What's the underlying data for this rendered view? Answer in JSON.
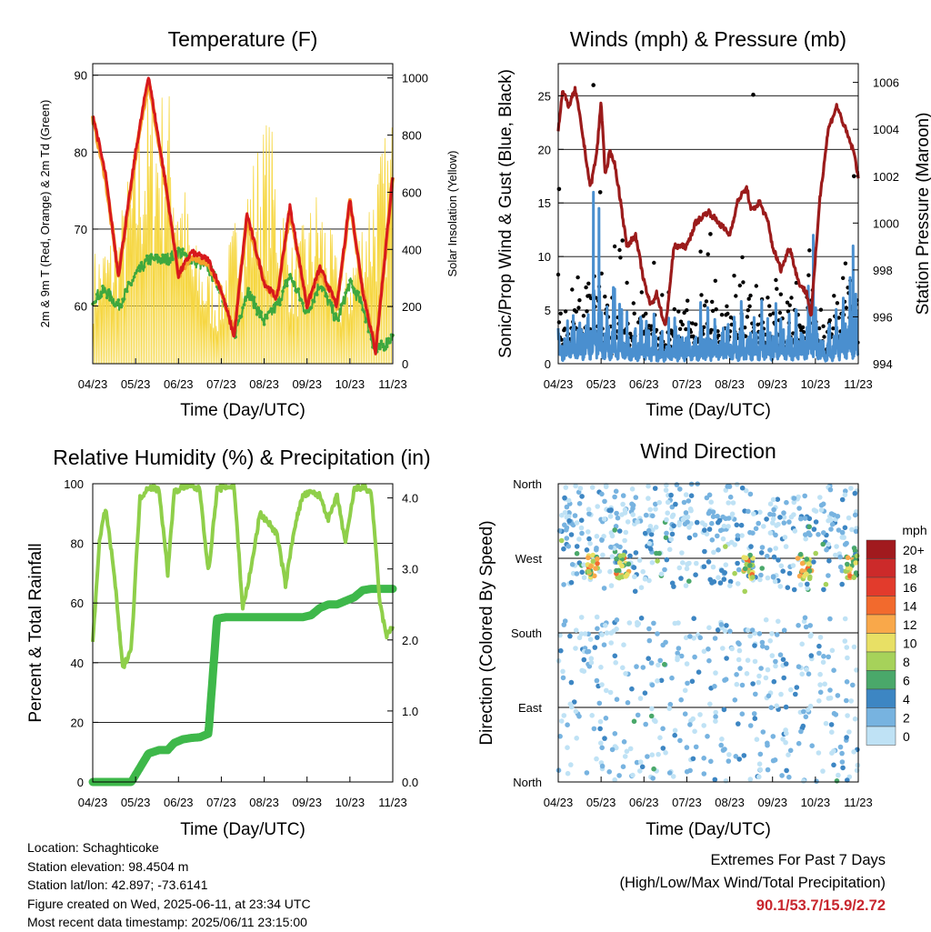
{
  "dates": [
    "04/23",
    "05/23",
    "06/23",
    "07/23",
    "08/23",
    "09/23",
    "10/23",
    "11/23"
  ],
  "colors": {
    "t2m": "#d7191c",
    "t9m": "#f4a12a",
    "td2m": "#3ea83e",
    "solar": "#f6d743",
    "wind": "#4a8fcf",
    "gust": "#000000",
    "pressure": "#9b1b1b",
    "rh": "#8fcf4a",
    "precip": "#3eb84a"
  },
  "panels": {
    "temp": {
      "title": "Temperature (F)",
      "xlabel": "Time (Day/UTC)",
      "ylabel": "2m & 9m T (Red, Orange) & 2m Td (Green)",
      "y2label": "Solar Insolation (Yellow)"
    },
    "wind": {
      "title": "Winds (mph) & Pressure (mb)",
      "xlabel": "Time (Day/UTC)",
      "ylabel": "Sonic/Prop Wind & Gust (Blue, Black)",
      "y2label": "Station Pressure (Maroon)"
    },
    "rh": {
      "title": "Relative Humidity (%) & Precipitation (in)",
      "xlabel": "Time (Day/UTC)",
      "ylabel": "Percent & Total Rainfall"
    },
    "dir": {
      "title": "Wind Direction",
      "xlabel": "Time (Day/UTC)",
      "ylabel": "Direction (Colored By Speed)"
    }
  },
  "legend": {
    "unit": "mph",
    "labels": [
      "20+",
      "18",
      "16",
      "14",
      "12",
      "10",
      "8",
      "6",
      "4",
      "2",
      "0"
    ],
    "colors": [
      "#a11a1e",
      "#cc2a2a",
      "#e23b2c",
      "#f26a2d",
      "#f9a84a",
      "#e8e065",
      "#a6d25a",
      "#4aa86a",
      "#3d86c3",
      "#77b3e0",
      "#bfe2f5"
    ]
  },
  "info": {
    "location": "Location: Schaghticoke",
    "elevation": "Station elevation: 98.4504 m",
    "latlon": "Station lat/lon: 42.897; -73.6141",
    "created": "Figure created on Wed, 2025-06-11, at 23:34 UTC",
    "recent": "Most recent data timestamp: 2025/06/11 23:15:00"
  },
  "extremes": {
    "title": "Extremes For Past 7 Days",
    "subtitle": "(High/Low/Max Wind/Total Precipitation)",
    "values": "90.1/53.7/15.9/2.72"
  },
  "chart_data": [
    {
      "type": "line",
      "title": "Temperature (F)",
      "xlabel": "Time (Day/UTC)",
      "ylabel": "2m & 9m T (Red, Orange) & 2m Td (Green)",
      "y2label": "Solar Insolation (Yellow)",
      "ylim": [
        52.5,
        91.5
      ],
      "y2lim": [
        0,
        1050
      ],
      "yticks": [
        60,
        70,
        80,
        90
      ],
      "y2ticks": [
        0,
        200,
        400,
        600,
        800,
        1000
      ],
      "x": [
        0,
        0.3,
        0.6,
        1.0,
        1.3,
        1.7,
        2.0,
        2.3,
        2.7,
        3.0,
        3.3,
        3.6,
        4.0,
        4.3,
        4.6,
        5.0,
        5.3,
        5.7,
        6.0,
        6.3,
        6.6,
        7.0
      ],
      "series": [
        {
          "name": "2m T",
          "values": [
            85,
            77,
            64,
            80,
            90,
            76,
            64,
            67,
            66,
            62,
            56,
            72,
            63,
            61,
            73,
            60,
            65,
            60,
            74,
            62,
            54,
            77
          ]
        },
        {
          "name": "9m T",
          "values": [
            84.5,
            76.5,
            64,
            79.5,
            89.5,
            75.5,
            64,
            66.5,
            65.5,
            62,
            56.5,
            71.5,
            63,
            61,
            72.5,
            60,
            64.5,
            60,
            73.5,
            62,
            54.5,
            76.5
          ]
        },
        {
          "name": "2m Td",
          "values": [
            61,
            62,
            60,
            64,
            66,
            66,
            67,
            66,
            65,
            62,
            56,
            62,
            58,
            60,
            64,
            59,
            63,
            58,
            63,
            60,
            54,
            56
          ]
        },
        {
          "name": "Solar",
          "peaks": [
            400,
            500,
            960,
            1000,
            450,
            280,
            650,
            900,
            400,
            650,
            290,
            640,
            900
          ]
        }
      ]
    },
    {
      "type": "scatter",
      "title": "Winds (mph) & Pressure (mb)",
      "xlabel": "Time (Day/UTC)",
      "ylabel": "Sonic/Prop Wind & Gust (Blue, Black)",
      "y2label": "Station Pressure (Maroon)",
      "ylim": [
        0,
        28
      ],
      "y2lim": [
        994,
        1006.8
      ],
      "yticks": [
        0,
        5,
        10,
        15,
        20,
        25
      ],
      "y2ticks": [
        994,
        996,
        998,
        1000,
        1002,
        1004,
        1006
      ],
      "x": [
        0,
        0.1,
        0.25,
        0.4,
        0.55,
        0.75,
        0.9,
        1.0,
        1.1,
        1.2,
        1.3,
        1.45,
        1.6,
        1.8,
        2.0,
        2.15,
        2.3,
        2.5,
        2.7,
        3.0,
        3.2,
        3.5,
        3.7,
        4.0,
        4.2,
        4.4,
        4.5,
        4.7,
        4.9,
        5.0,
        5.2,
        5.4,
        5.6,
        5.8,
        5.9,
        6.1,
        6.3,
        6.5,
        6.7,
        6.9,
        7.0
      ],
      "series": [
        {
          "name": "Pressure",
          "values": [
            1004,
            1005.6,
            1005,
            1005.7,
            1004,
            1001.5,
            1003,
            1005.2,
            1002,
            1003,
            1002.7,
            1001,
            999,
            999.5,
            997.5,
            996.5,
            997,
            995.5,
            999,
            999,
            1000,
            1000.5,
            1000.1,
            999.5,
            1001,
            1001.5,
            1000.5,
            1000.9,
            1000,
            999,
            998,
            999,
            997.5,
            997,
            996,
            1001,
            1004,
            1005,
            1004,
            1003,
            1002
          ]
        },
        {
          "name": "Wind",
          "typical": 3,
          "max": 16
        },
        {
          "name": "Gust",
          "typical": 5.5,
          "max": 26
        }
      ]
    },
    {
      "type": "line",
      "title": "Relative Humidity (%) & Precipitation (in)",
      "xlabel": "Time (Day/UTC)",
      "ylabel": "Percent & Total Rainfall",
      "ylim": [
        0,
        100
      ],
      "y2lim": [
        0,
        4.2
      ],
      "yticks": [
        0,
        20,
        40,
        60,
        80,
        100
      ],
      "y2ticks": [
        0.0,
        1.0,
        2.0,
        3.0,
        4.0
      ],
      "x": [
        0,
        0.15,
        0.3,
        0.5,
        0.7,
        0.9,
        1.1,
        1.3,
        1.55,
        1.75,
        1.9,
        2.1,
        2.3,
        2.5,
        2.7,
        2.9,
        3.1,
        3.3,
        3.5,
        3.7,
        3.9,
        4.1,
        4.3,
        4.5,
        4.7,
        4.9,
        5.1,
        5.3,
        5.5,
        5.7,
        5.9,
        6.1,
        6.3,
        6.5,
        6.7,
        6.85,
        7.0
      ],
      "series": [
        {
          "name": "Relative Humidity",
          "values": [
            46,
            80,
            92,
            70,
            38,
            45,
            95,
            99,
            98,
            70,
            97,
            99,
            99,
            98,
            70,
            98,
            99,
            99,
            58,
            72,
            90,
            87,
            83,
            66,
            85,
            96,
            97,
            96,
            88,
            96,
            80,
            98,
            99,
            97,
            60,
            49,
            52
          ]
        },
        {
          "name": "Total Precipitation",
          "values": [
            0,
            0,
            0,
            0,
            0,
            0,
            0.2,
            0.4,
            0.45,
            0.45,
            0.55,
            0.6,
            0.62,
            0.63,
            0.68,
            2.3,
            2.32,
            2.32,
            2.32,
            2.32,
            2.32,
            2.32,
            2.32,
            2.32,
            2.32,
            2.32,
            2.35,
            2.45,
            2.5,
            2.5,
            2.55,
            2.6,
            2.7,
            2.72,
            2.72,
            2.72,
            2.72
          ]
        }
      ]
    },
    {
      "type": "scatter",
      "title": "Wind Direction",
      "xlabel": "Time (Day/UTC)",
      "ylabel": "Direction (Colored By Speed)",
      "yticks": [
        "North",
        "East",
        "South",
        "West",
        "North"
      ],
      "color_scale": "Speed (mph)",
      "legend_placement": "right",
      "x_ticks": [
        "04/23",
        "05/23",
        "06/23",
        "07/23",
        "08/23",
        "09/23",
        "10/23",
        "11/23"
      ]
    }
  ]
}
